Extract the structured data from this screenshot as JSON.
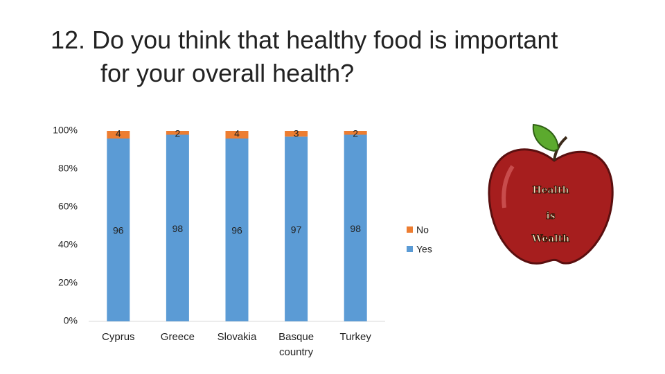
{
  "chart_data": {
    "type": "stacked_bar",
    "title": "12. Do you think that healthy food is important for your overall health?",
    "categories": [
      "Cyprus",
      "Greece",
      "Slovakia",
      "Basque country",
      "Turkey"
    ],
    "series": [
      {
        "name": "Yes",
        "color": "#5b9bd5",
        "values": [
          96,
          98,
          96,
          97,
          98
        ]
      },
      {
        "name": "No",
        "color": "#ed7d31",
        "values": [
          4,
          2,
          4,
          3,
          2
        ]
      }
    ],
    "ylim": [
      0,
      100
    ],
    "yticks": [
      {
        "value": 0,
        "label": "0%"
      },
      {
        "value": 20,
        "label": "20%"
      },
      {
        "value": 40,
        "label": "40%"
      },
      {
        "value": 60,
        "label": "60%"
      },
      {
        "value": 80,
        "label": "80%"
      },
      {
        "value": 100,
        "label": "100%"
      }
    ],
    "grid": false
  },
  "illustration": {
    "lines": [
      "Health",
      "is",
      "Wealth"
    ]
  }
}
